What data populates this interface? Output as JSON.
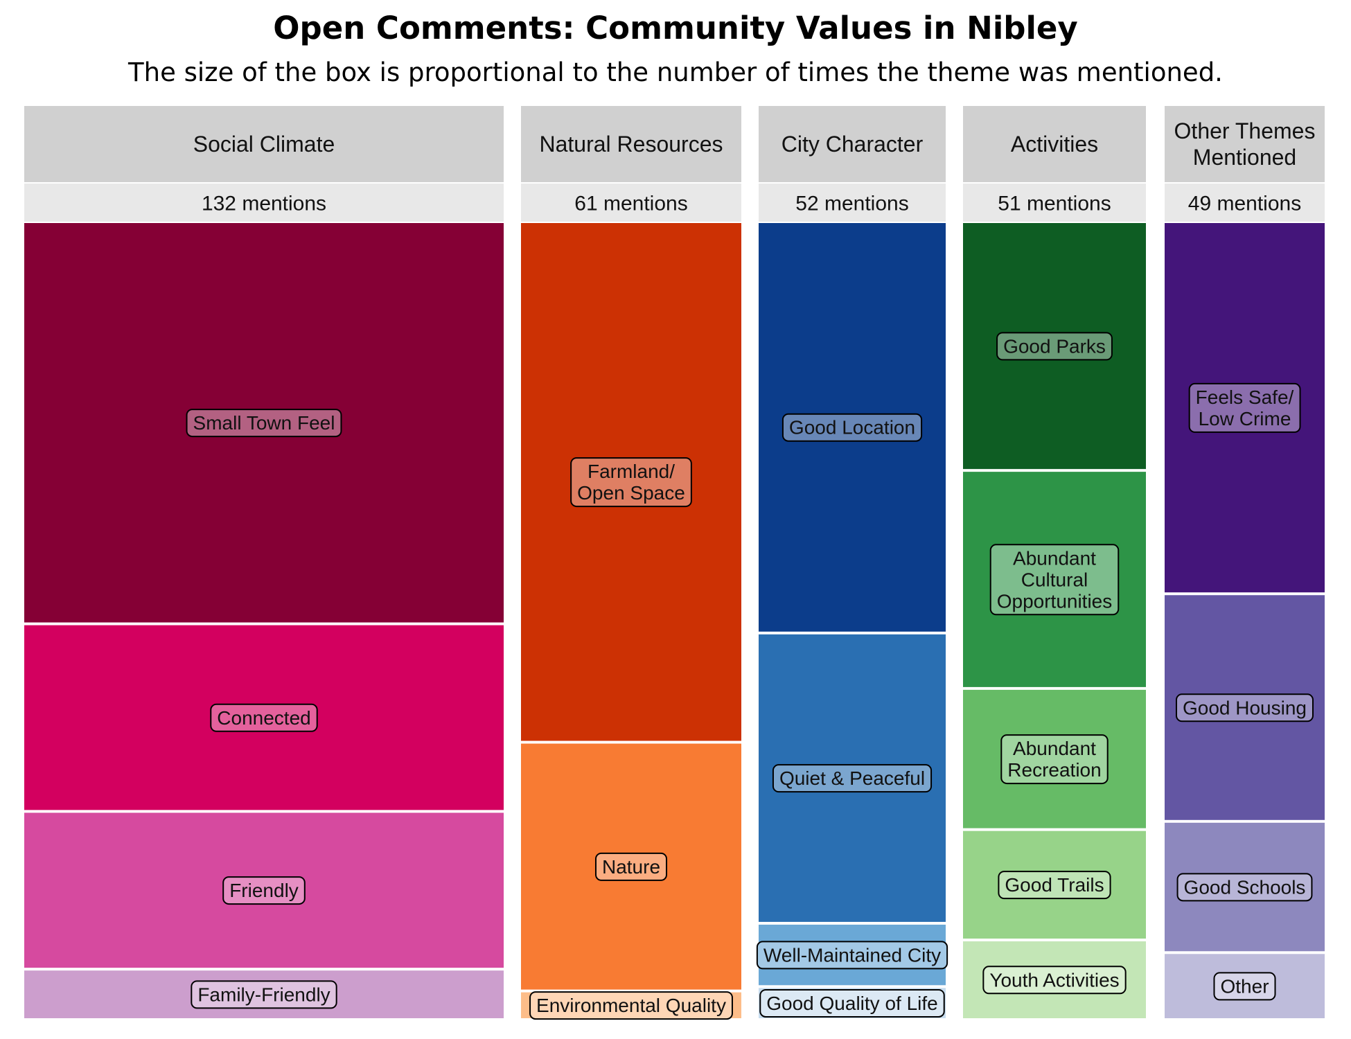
{
  "chart_data": {
    "type": "treemap",
    "title": "Open Comments: Community Values in Nibley",
    "subtitle": "The size of the box is proportional to the number of times the theme was mentioned.",
    "groups": [
      {
        "name": "Social Climate",
        "mentions_label": "132 mentions",
        "total": 132,
        "items": [
          {
            "label": "Small Town Feel",
            "value": 67,
            "color": "#850035"
          },
          {
            "label": "Connected",
            "value": 31,
            "color": "#d3005f"
          },
          {
            "label": "Friendly",
            "value": 26,
            "color": "#d64a9f"
          },
          {
            "label": "Family-Friendly",
            "value": 8,
            "color": "#cc9ecd"
          }
        ]
      },
      {
        "name": "Natural Resources",
        "mentions_label": "61 mentions",
        "total": 61,
        "items": [
          {
            "label": "Farmland/\nOpen Space",
            "value": 40,
            "color": "#cc3104"
          },
          {
            "label": "Nature",
            "value": 19,
            "color": "#f87b33"
          },
          {
            "label": "Environmental Quality",
            "value": 2,
            "color": "#fdbd89"
          }
        ]
      },
      {
        "name": "City Character",
        "mentions_label": "52 mentions",
        "total": 52,
        "items": [
          {
            "label": "Good Location",
            "value": 27,
            "color": "#0c3d8b"
          },
          {
            "label": "Quiet & Peaceful",
            "value": 19,
            "color": "#2a6fb2"
          },
          {
            "label": "Well-Maintained City",
            "value": 4,
            "color": "#6aa8d6"
          },
          {
            "label": "Good Quality of Life",
            "value": 2,
            "color": "#c7dcee"
          }
        ]
      },
      {
        "name": "Activities",
        "mentions_label": "51 mentions",
        "total": 51,
        "items": [
          {
            "label": "Good Parks",
            "value": 16,
            "color": "#0e5d23"
          },
          {
            "label": "Abundant\nCultural\nOpportunities",
            "value": 14,
            "color": "#2d9447"
          },
          {
            "label": "Abundant\nRecreation",
            "value": 9,
            "color": "#66bb66"
          },
          {
            "label": "Good Trails",
            "value": 7,
            "color": "#97d389"
          },
          {
            "label": "Youth Activities",
            "value": 5,
            "color": "#c3e6b6"
          }
        ]
      },
      {
        "name": "Other Themes\nMentioned",
        "mentions_label": "49 mentions",
        "total": 49,
        "items": [
          {
            "label": "Feels Safe/\nLow Crime",
            "value": 23,
            "color": "#44157a"
          },
          {
            "label": "Good Housing",
            "value": 14,
            "color": "#6356a3"
          },
          {
            "label": "Good Schools",
            "value": 8,
            "color": "#8d88be"
          },
          {
            "label": "Other",
            "value": 4,
            "color": "#bebcdb"
          }
        ]
      }
    ]
  }
}
